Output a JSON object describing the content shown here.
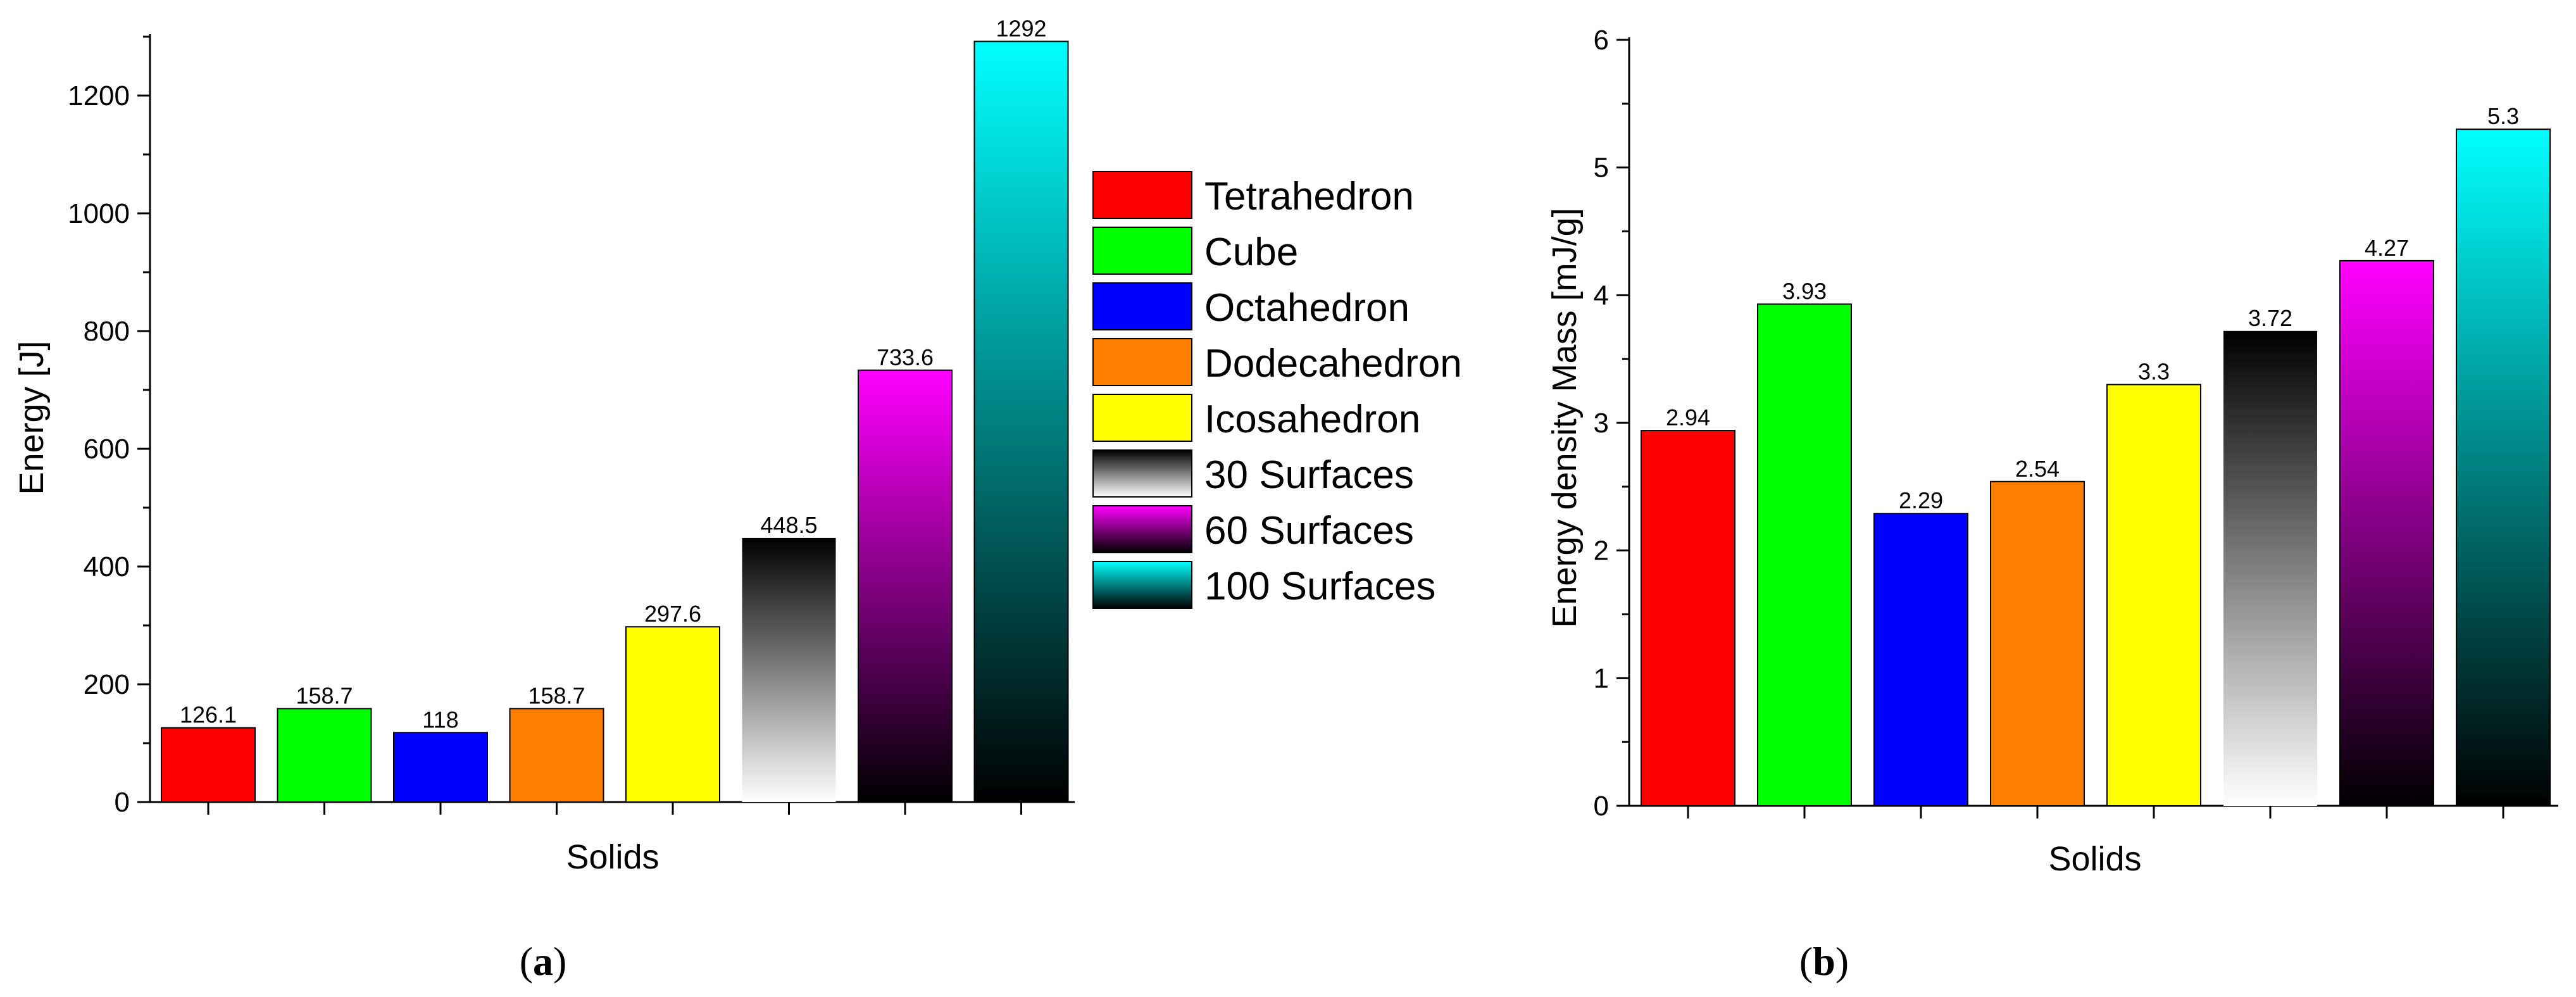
{
  "chart_data": [
    {
      "type": "bar",
      "panel_label": "a",
      "title": "",
      "xlabel": "Solids",
      "ylabel": "Energy [J]",
      "ylim": [
        0,
        1300
      ],
      "yticks": [
        0,
        200,
        400,
        600,
        800,
        1000,
        1200
      ],
      "grid": false,
      "legend_position": "right",
      "categories": [
        "Tetrahedron",
        "Cube",
        "Octahedron",
        "Dodecahedron",
        "Icosahedron",
        "30 Surfaces",
        "60 Surfaces",
        "100 Surfaces"
      ],
      "values": [
        126.1,
        158.7,
        118,
        158.7,
        297.6,
        448.5,
        733.6,
        1292
      ],
      "value_labels": [
        "126.1",
        "158.7",
        "118",
        "158.7",
        "297.6",
        "448.5",
        "733.6",
        "1292"
      ]
    },
    {
      "type": "bar",
      "panel_label": "b",
      "title": "",
      "xlabel": "Solids",
      "ylabel": "Energy density Mass [mJ/g]",
      "ylim": [
        0,
        6
      ],
      "yticks": [
        0,
        1,
        2,
        3,
        4,
        5,
        6
      ],
      "grid": false,
      "categories": [
        "Tetrahedron",
        "Cube",
        "Octahedron",
        "Dodecahedron",
        "Icosahedron",
        "30 Surfaces",
        "60 Surfaces",
        "100 Surfaces"
      ],
      "values": [
        2.94,
        3.93,
        2.29,
        2.54,
        3.3,
        3.72,
        4.27,
        5.3
      ],
      "value_labels": [
        "2.94",
        "3.93",
        "2.29",
        "2.54",
        "3.3",
        "3.72",
        "4.27",
        "5.3"
      ]
    }
  ],
  "series_styles": [
    {
      "name": "Tetrahedron",
      "fill": "solid",
      "top": "#ff0000",
      "bottom": "#ff0000"
    },
    {
      "name": "Cube",
      "fill": "solid",
      "top": "#00ff00",
      "bottom": "#00ff00"
    },
    {
      "name": "Octahedron",
      "fill": "solid",
      "top": "#0000ff",
      "bottom": "#0000ff"
    },
    {
      "name": "Dodecahedron",
      "fill": "solid",
      "top": "#ff8000",
      "bottom": "#ff8000"
    },
    {
      "name": "Icosahedron",
      "fill": "solid",
      "top": "#ffff00",
      "bottom": "#ffff00"
    },
    {
      "name": "30 Surfaces",
      "fill": "gradient",
      "top": "#000000",
      "bottom": "#ffffff"
    },
    {
      "name": "60 Surfaces",
      "fill": "gradient",
      "top": "#ff00ff",
      "bottom": "#000000"
    },
    {
      "name": "100 Surfaces",
      "fill": "gradient",
      "top": "#00ffff",
      "bottom": "#000000"
    }
  ]
}
